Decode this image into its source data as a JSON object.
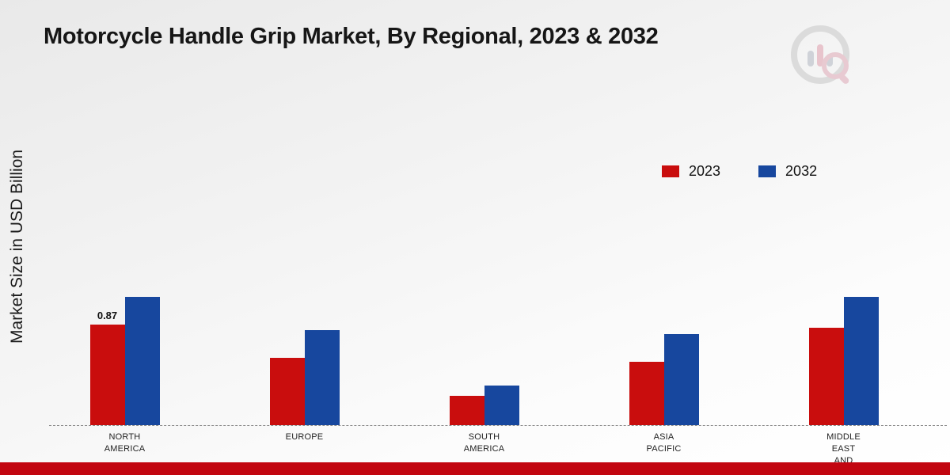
{
  "title": "Motorcycle Handle Grip Market, By Regional, 2023 & 2032",
  "ylabel": "Market Size in USD Billion",
  "legend": {
    "items": [
      {
        "label": "2023"
      },
      {
        "label": "2032"
      }
    ]
  },
  "colors": {
    "series_2023": "#c90d0d",
    "series_2032": "#17479e",
    "footer_strip": "#c20610"
  },
  "chart_data": {
    "type": "bar",
    "title": "Motorcycle Handle Grip Market, By Regional, 2023 & 2032",
    "xlabel": "",
    "ylabel": "Market Size in USD Billion",
    "categories": [
      "North America",
      "Europe",
      "South America",
      "Asia Pacific",
      "Middle East And"
    ],
    "category_display": [
      [
        "NORTH",
        "AMERICA"
      ],
      [
        "EUROPE"
      ],
      [
        "SOUTH",
        "AMERICA"
      ],
      [
        "ASIA",
        "PACIFIC"
      ],
      [
        "MIDDLE",
        "EAST",
        "AND"
      ]
    ],
    "series": [
      {
        "name": "2023",
        "color": "#c90d0d",
        "values": [
          0.87,
          0.58,
          0.25,
          0.55,
          0.84
        ]
      },
      {
        "name": "2032",
        "color": "#17479e",
        "values": [
          1.11,
          0.82,
          0.34,
          0.79,
          1.11
        ]
      }
    ],
    "annotations": [
      {
        "series": "2023",
        "category": "North America",
        "text": "0.87"
      }
    ],
    "ylim": [
      0,
      1.25
    ],
    "grid": false,
    "baseline_style": "dashed",
    "legend_position": "upper-right"
  }
}
